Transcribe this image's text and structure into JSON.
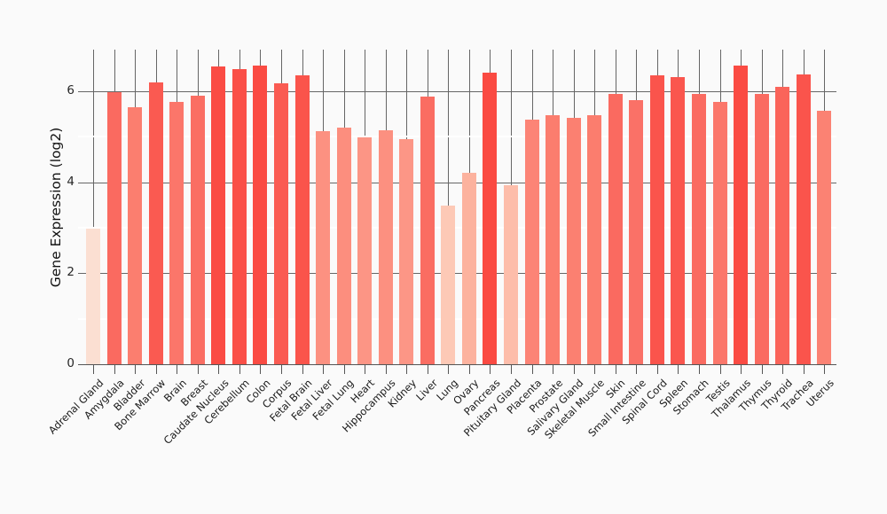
{
  "chart_data": {
    "type": "bar",
    "title": "",
    "xlabel": "",
    "ylabel": "Gene Expression (log2)",
    "ylim": [
      0,
      6.92
    ],
    "yticks": [
      0,
      2,
      4,
      6
    ],
    "ytick_labels": [
      "0",
      "2",
      "4",
      "6"
    ],
    "minor_gridlines": [
      1,
      3,
      5
    ],
    "grid": "dark major gridlines at even values, white minor gridlines at odd values, dark vertical gridline per category",
    "legend_position": "none",
    "categories": [
      "Adrenal Gland",
      "Amygdala",
      "Bladder",
      "Bone Marrow",
      "Brain",
      "Breast",
      "Caudate Nucleus",
      "Cerebellum",
      "Colon",
      "Corpus",
      "Fetal Brain",
      "Fetal Liver",
      "Fetal Lung",
      "Heart",
      "Hippocampus",
      "Kidney",
      "Liver",
      "Lung",
      "Ovary",
      "Pancreas",
      "Pituitary Gland",
      "Placenta",
      "Prostate",
      "Salivary Gland",
      "Skeletal Muscle",
      "Skin",
      "Small Intestine",
      "Spinal Cord",
      "Spleen",
      "Stomach",
      "Testis",
      "Thalamus",
      "Thymus",
      "Thyroid",
      "Trachea",
      "Uterus"
    ],
    "values": [
      2.98,
      5.98,
      5.65,
      6.2,
      5.76,
      5.9,
      6.54,
      6.49,
      6.56,
      6.18,
      6.35,
      5.12,
      5.2,
      4.98,
      5.14,
      4.94,
      5.89,
      3.49,
      4.2,
      6.41,
      3.93,
      5.38,
      5.48,
      5.42,
      5.48,
      5.94,
      5.81,
      6.36,
      6.31,
      5.94,
      5.76,
      6.57,
      5.94,
      6.09,
      6.37,
      5.57
    ],
    "bar_colors": [
      "#FBDFD2",
      "#FA6A60",
      "#FB7E6F",
      "#FA5A51",
      "#FB766A",
      "#FA6E63",
      "#FA4C44",
      "#FA4F47",
      "#FA4B43",
      "#FA5B52",
      "#FA544B",
      "#FC9181",
      "#FC8E7E",
      "#FC9585",
      "#FC9080",
      "#FC9686",
      "#FA6D62",
      "#FDC9B6",
      "#FCB29E",
      "#FA4A42",
      "#FDBDAA",
      "#FC8476",
      "#FB7D6E",
      "#FB8071",
      "#FB7D6E",
      "#FA6A60",
      "#FA7167",
      "#FA544C",
      "#FA564E",
      "#FA6B61",
      "#FB776B",
      "#FA4B43",
      "#FA6B61",
      "#FA645A",
      "#FA544C",
      "#FB8273"
    ]
  },
  "style": {
    "background": "#FAFAFA",
    "major_grid_color": "#666666",
    "minor_grid_color": "#FFFFFF",
    "axis_line_color": "#555555",
    "tick_text_color": "#262626",
    "title_text_color": "#111111"
  }
}
